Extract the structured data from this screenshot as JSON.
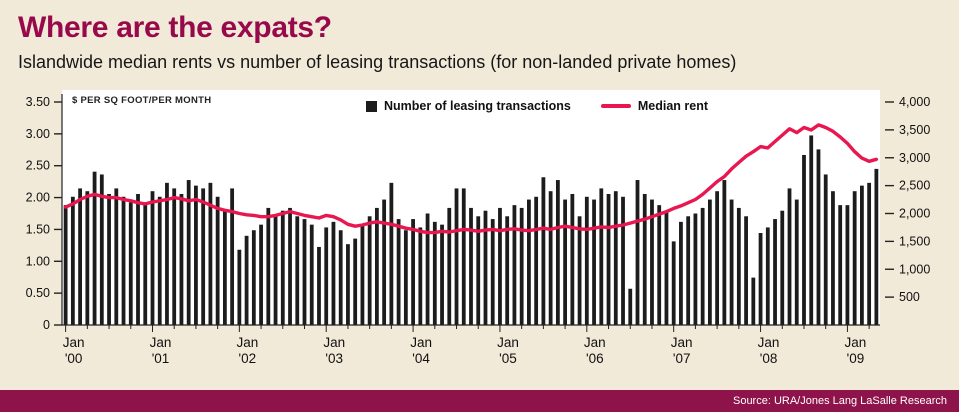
{
  "header": {
    "title": "Where are the expats?",
    "subtitle": "Islandwide median rents vs number of leasing transactions (for non-landed private homes)"
  },
  "legend": {
    "bar_label": "Number of leasing transactions",
    "line_label": "Median rent"
  },
  "axes": {
    "left_title": "$ PER SQ FOOT/PER MONTH",
    "left_ticks": [
      "3.50",
      "3.00",
      "2.50",
      "2.00",
      "1.50",
      "1.00",
      "0.50",
      "0"
    ],
    "right_ticks": [
      "4,000",
      "3,500",
      "3,000",
      "2,500",
      "2,000",
      "1,500",
      "1,000",
      "500"
    ],
    "x_ticks": [
      {
        "month": "Jan",
        "year": "'00"
      },
      {
        "month": "Jan",
        "year": "'01"
      },
      {
        "month": "Jan",
        "year": "'02"
      },
      {
        "month": "Jan",
        "year": "'03"
      },
      {
        "month": "Jan",
        "year": "'04"
      },
      {
        "month": "Jan",
        "year": "'05"
      },
      {
        "month": "Jan",
        "year": "'06"
      },
      {
        "month": "Jan",
        "year": "'07"
      },
      {
        "month": "Jan",
        "year": "'08"
      },
      {
        "month": "Jan",
        "year": "'09"
      }
    ]
  },
  "footer": {
    "source": "Source: URA/Jones Lang LaSalle Research"
  },
  "colors": {
    "background": "#f2ead9",
    "accent": "#97094a",
    "bar": "#1c1c1c",
    "line": "#e8174f",
    "footer_bg": "#8e134a",
    "plot_bg": "#ffffff",
    "axis": "#222222"
  },
  "chart_data": {
    "type": "combo",
    "title": "Islandwide median rents vs number of leasing transactions (for non-landed private homes)",
    "x_start": "Jan 2000",
    "x_end": "May 2009",
    "x_interval": "month",
    "x_tick_labels": [
      "Jan '00",
      "Jan '01",
      "Jan '02",
      "Jan '03",
      "Jan '04",
      "Jan '05",
      "Jan '06",
      "Jan '07",
      "Jan '08",
      "Jan '09"
    ],
    "left_axis": {
      "title": "$ PER SQ FOOT/PER MONTH",
      "min": 0,
      "max": 3.5,
      "step": 0.5,
      "series": "Median rent"
    },
    "right_axis": {
      "min": 0,
      "max": 4000,
      "step": 500,
      "series": "Number of leasing transactions"
    },
    "legend_position": "top-center",
    "grid": false,
    "series": [
      {
        "name": "Number of leasing transactions",
        "type": "bar",
        "axis": "right",
        "values": [
          2150,
          2300,
          2450,
          2400,
          2750,
          2700,
          2350,
          2450,
          2300,
          2200,
          2350,
          2200,
          2400,
          2300,
          2550,
          2450,
          2350,
          2600,
          2500,
          2450,
          2550,
          2300,
          2050,
          2450,
          1350,
          1600,
          1700,
          1800,
          2100,
          1950,
          2050,
          2100,
          1950,
          1900,
          1800,
          1400,
          1750,
          1850,
          1700,
          1450,
          1550,
          1800,
          1950,
          2100,
          2250,
          2550,
          1900,
          1700,
          1900,
          1750,
          2000,
          1850,
          1800,
          2100,
          2450,
          2450,
          2100,
          1950,
          2050,
          1900,
          2100,
          1950,
          2150,
          2100,
          2250,
          2300,
          2650,
          2400,
          2600,
          2250,
          2350,
          1950,
          2300,
          2250,
          2450,
          2350,
          2400,
          2300,
          650,
          2600,
          2350,
          2250,
          2150,
          2050,
          1500,
          1850,
          1950,
          2000,
          2100,
          2250,
          2400,
          2600,
          2250,
          2100,
          1950,
          850,
          1650,
          1750,
          1900,
          2050,
          2450,
          2250,
          3050,
          3400,
          3150,
          2700,
          2400,
          2150,
          2150,
          2400,
          2500,
          2550,
          2800
        ]
      },
      {
        "name": "Median rent",
        "type": "line",
        "axis": "left",
        "values": [
          1.85,
          1.9,
          1.97,
          2.02,
          2.05,
          2.02,
          2.0,
          2.0,
          1.97,
          1.95,
          1.92,
          1.9,
          1.93,
          1.95,
          1.97,
          2.0,
          1.98,
          1.95,
          1.97,
          1.93,
          1.88,
          1.83,
          1.8,
          1.78,
          1.75,
          1.73,
          1.72,
          1.7,
          1.7,
          1.72,
          1.75,
          1.78,
          1.75,
          1.72,
          1.7,
          1.68,
          1.72,
          1.7,
          1.65,
          1.58,
          1.55,
          1.57,
          1.6,
          1.62,
          1.6,
          1.58,
          1.55,
          1.52,
          1.5,
          1.47,
          1.45,
          1.45,
          1.47,
          1.46,
          1.48,
          1.5,
          1.49,
          1.47,
          1.49,
          1.5,
          1.48,
          1.5,
          1.51,
          1.49,
          1.48,
          1.5,
          1.52,
          1.5,
          1.53,
          1.55,
          1.53,
          1.51,
          1.5,
          1.52,
          1.54,
          1.53,
          1.55,
          1.57,
          1.6,
          1.63,
          1.66,
          1.7,
          1.74,
          1.78,
          1.83,
          1.87,
          1.92,
          1.97,
          2.05,
          2.15,
          2.25,
          2.33,
          2.45,
          2.55,
          2.65,
          2.72,
          2.8,
          2.78,
          2.88,
          2.98,
          3.08,
          3.02,
          3.1,
          3.06,
          3.14,
          3.1,
          3.04,
          2.95,
          2.85,
          2.72,
          2.62,
          2.57,
          2.6
        ]
      }
    ]
  }
}
